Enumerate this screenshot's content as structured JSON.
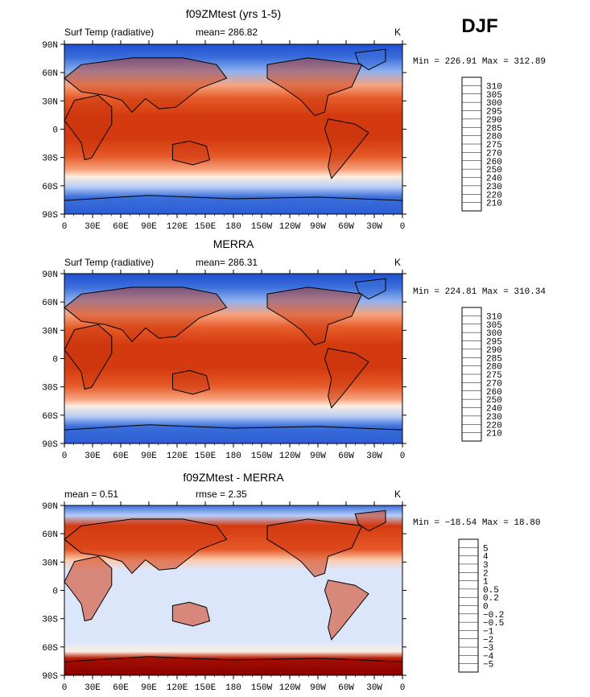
{
  "season": "DJF",
  "axes": {
    "lat_labels": [
      "90N",
      "60N",
      "30N",
      "0",
      "30S",
      "60S",
      "90S"
    ],
    "lon_labels": [
      "0",
      "30E",
      "60E",
      "90E",
      "120E",
      "150E",
      "180",
      "150W",
      "120W",
      "90W",
      "60W",
      "30W",
      "0"
    ]
  },
  "panels": [
    {
      "title": "f09ZMtest (yrs 1-5)",
      "left_label": "Surf Temp (radiative)",
      "center_label": "mean= 286.82",
      "units": "K",
      "minmax": "Min = 226.91 Max = 312.89"
    },
    {
      "title": "MERRA",
      "left_label": "Surf Temp (radiative)",
      "center_label": "mean= 286.31",
      "units": "K",
      "minmax": "Min = 224.81 Max = 310.34"
    },
    {
      "title": "f09ZMtest - MERRA",
      "left_label": "mean =    0.51",
      "center_label": "rmse =    2.35",
      "units": "K",
      "minmax": "Min = −18.54 Max =  18.80"
    }
  ],
  "colorbars": {
    "temperature": {
      "levels": [
        "310",
        "305",
        "300",
        "295",
        "290",
        "285",
        "280",
        "275",
        "270",
        "260",
        "250",
        "240",
        "230",
        "220",
        "210"
      ],
      "colors": [
        "#8b0000",
        "#b81c06",
        "#d43a10",
        "#e65a28",
        "#f07f50",
        "#f7a47f",
        "#fbc9ab",
        "#fdeee1",
        "#dbe6fb",
        "#b7cdf6",
        "#8fb1ef",
        "#6592e6",
        "#3c6fdb",
        "#1f4fd0",
        "#0c32b8",
        "#021a7f"
      ]
    },
    "difference": {
      "levels": [
        "5",
        "4",
        "3",
        "2",
        "1",
        "0.5",
        "0.2",
        "0",
        "−0.2",
        "−0.5",
        "−1",
        "−2",
        "−3",
        "−4",
        "−5"
      ],
      "colors": [
        "#8b0000",
        "#b81c06",
        "#d43a10",
        "#e65a28",
        "#f07f50",
        "#f7a47f",
        "#fbc9ab",
        "#fdeee1",
        "#dbe6fb",
        "#b7cdf6",
        "#8fb1ef",
        "#6592e6",
        "#3c6fdb",
        "#1f4fd0",
        "#0c32b8",
        "#021a7f"
      ]
    }
  }
}
